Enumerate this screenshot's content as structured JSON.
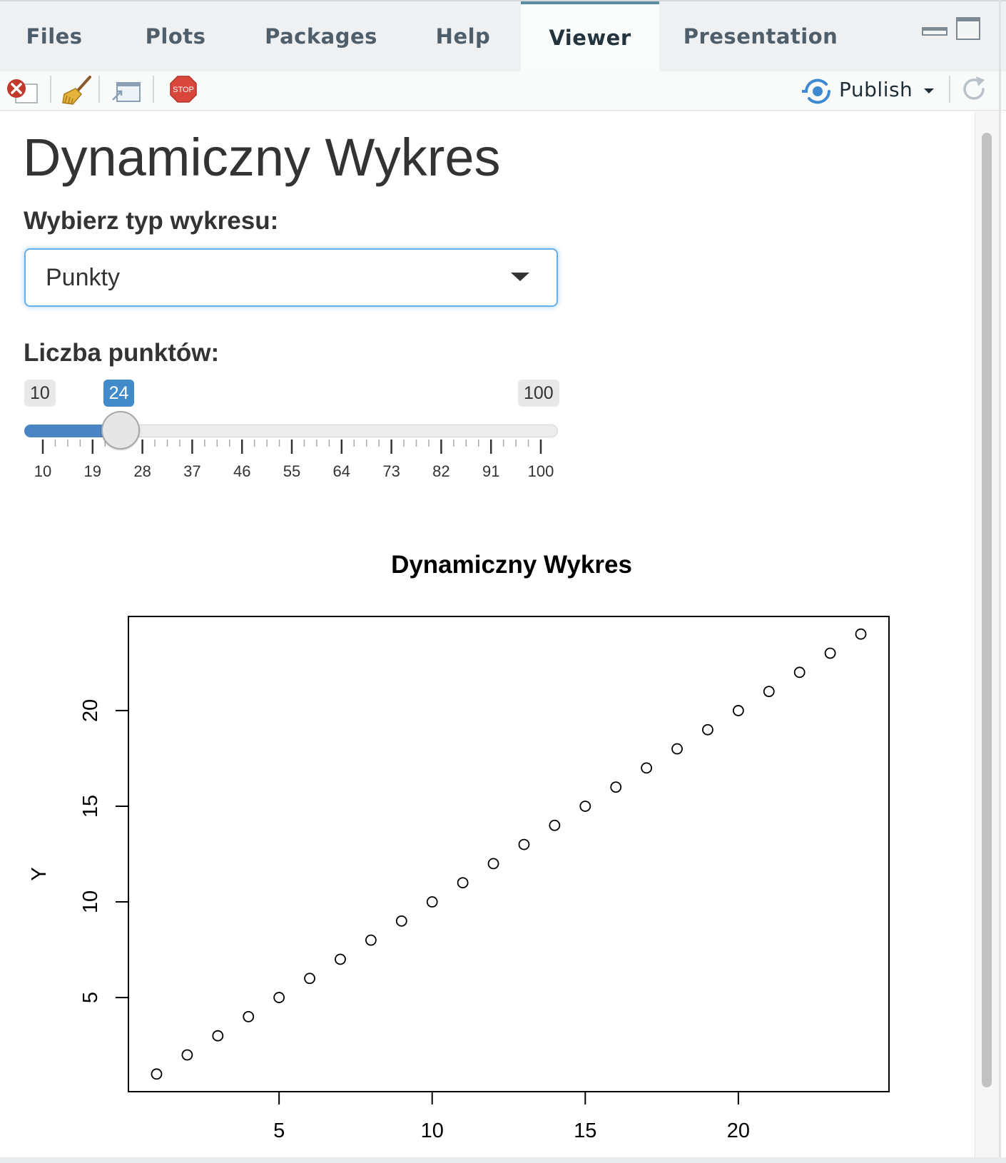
{
  "tabs": [
    {
      "label": "Files",
      "active": false
    },
    {
      "label": "Plots",
      "active": false
    },
    {
      "label": "Packages",
      "active": false
    },
    {
      "label": "Help",
      "active": false
    },
    {
      "label": "Viewer",
      "active": true
    },
    {
      "label": "Presentation",
      "active": false
    }
  ],
  "toolbar": {
    "icons": [
      "remove-viewer-icon",
      "broom-icon",
      "popout-window-icon",
      "stop-icon"
    ],
    "publish_label": "Publish",
    "publish_icon": "publish-icon",
    "refresh_icon": "refresh-icon"
  },
  "app": {
    "title": "Dynamiczny Wykres",
    "plot_type_label": "Wybierz typ wykresu:",
    "plot_type_value": "Punkty",
    "points_label": "Liczba punktów:",
    "slider": {
      "min": 10,
      "max": 100,
      "value": 24,
      "ticks": [
        "10",
        "19",
        "28",
        "37",
        "46",
        "55",
        "64",
        "73",
        "82",
        "91",
        "100"
      ]
    }
  },
  "colors": {
    "accent": "#428bca",
    "active_tab_border": "#5a8fa0",
    "stop_red": "#d9463b"
  },
  "chart_data": {
    "type": "scatter",
    "title": "Dynamiczny Wykres",
    "xlabel": "",
    "ylabel": "Y",
    "x": [
      1,
      2,
      3,
      4,
      5,
      6,
      7,
      8,
      9,
      10,
      11,
      12,
      13,
      14,
      15,
      16,
      17,
      18,
      19,
      20,
      21,
      22,
      23,
      24
    ],
    "y": [
      1,
      2,
      3,
      4,
      5,
      6,
      7,
      8,
      9,
      10,
      11,
      12,
      13,
      14,
      15,
      16,
      17,
      18,
      19,
      20,
      21,
      22,
      23,
      24
    ],
    "xticks": [
      5,
      10,
      15,
      20
    ],
    "yticks": [
      5,
      10,
      15,
      20
    ],
    "xlim": [
      0.08,
      24.92
    ],
    "ylim": [
      0.08,
      24.92
    ],
    "marker": "open-circle",
    "grid": false
  }
}
